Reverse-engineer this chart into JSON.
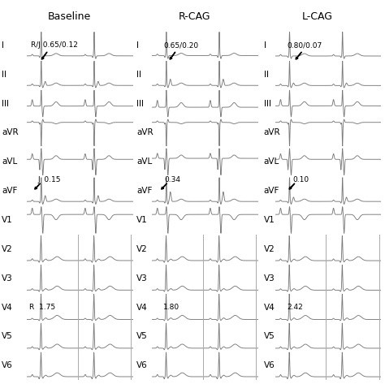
{
  "title_baseline": "Baseline",
  "title_rcag": "R-CAG",
  "title_lcag": "L-CAG",
  "leads": [
    "I",
    "II",
    "III",
    "aVR",
    "aVL",
    "aVF",
    "V1",
    "V2",
    "V3",
    "V4",
    "V5",
    "V6"
  ],
  "col_titles": [
    "Baseline",
    "R-CAG",
    "L-CAG"
  ],
  "annot_baseline_top": "R/J 0.65/0.12",
  "annot_baseline_avf": "J  0.15",
  "annot_baseline_r": "R  1.75",
  "annot_rcag_top": "0.65/0.20",
  "annot_rcag_avf": "0.34",
  "annot_rcag_r": "1.80",
  "annot_lcag_top": "0.80/0.07",
  "annot_lcag_avf": "0.10",
  "annot_lcag_r": "2.42",
  "bg_color": "#ffffff",
  "line_color": "#7a7a7a",
  "text_color": "#000000",
  "title_fontsize": 9,
  "label_fontsize": 7.5,
  "annot_fontsize": 6.5
}
